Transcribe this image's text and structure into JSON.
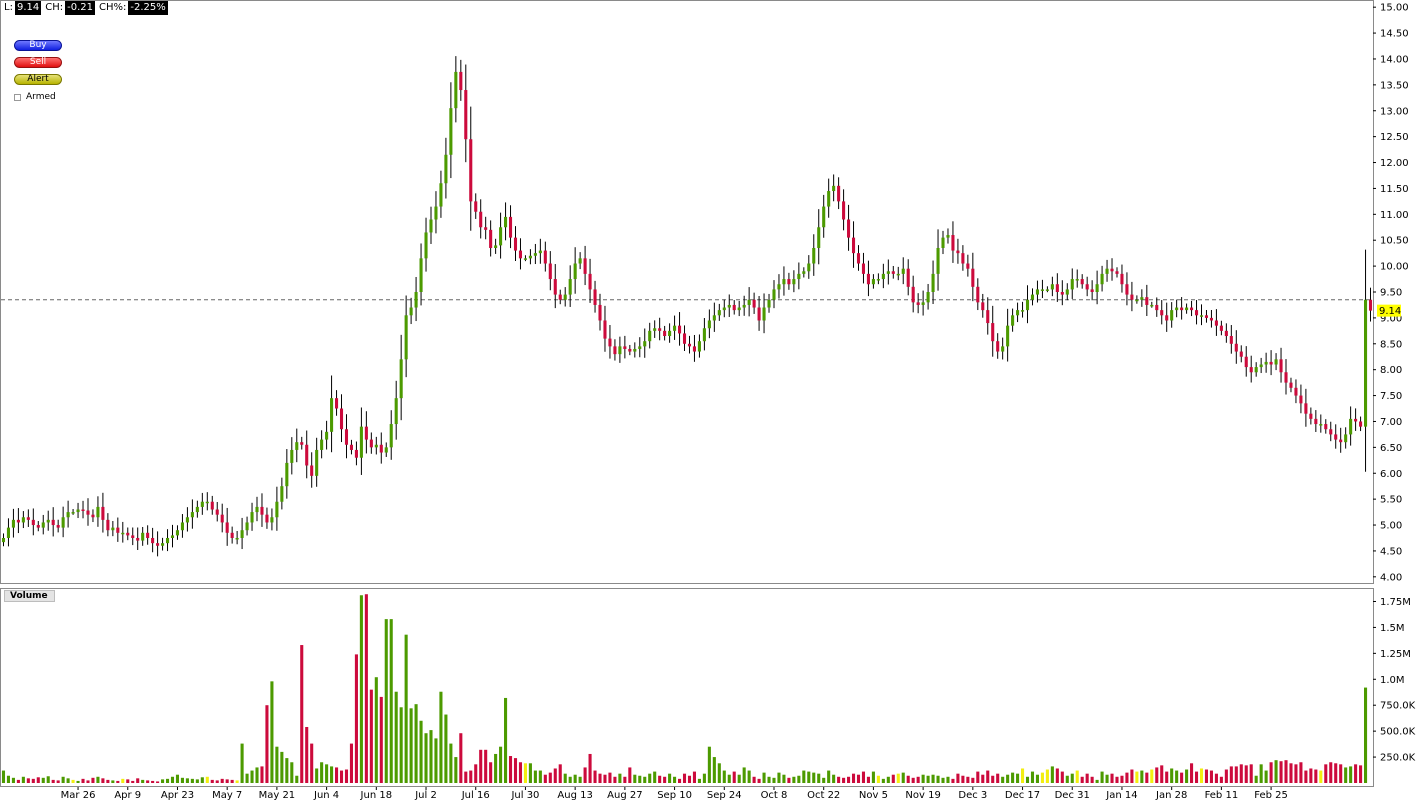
{
  "quote": {
    "last_label": "L:",
    "last_value": "9.14",
    "change_label": "CH:",
    "change_value": "-0.21",
    "change_pct_label": "CH%:",
    "change_pct_value": "-2.25%"
  },
  "controls": {
    "buy_label": "Buy",
    "sell_label": "Sell",
    "alert_label": "Alert",
    "armed_label": "Armed"
  },
  "volume_panel_label": "Volume",
  "price_marker_label": "9.14",
  "colors": {
    "up": "#4c9a00",
    "down": "#cc0a3c",
    "volume_neutral": "#f2ee10",
    "grid_dash": "#666666",
    "price_marker_bg": "#ffff00",
    "panel_border": "#8a8a8a"
  },
  "chart_data": [
    {
      "type": "candlestick",
      "title": "",
      "y_ticks": [
        "15.00",
        "14.50",
        "14.00",
        "13.50",
        "13.00",
        "12.50",
        "12.00",
        "11.50",
        "11.00",
        "10.50",
        "10.00",
        "9.50",
        "9.00",
        "8.50",
        "8.00",
        "7.50",
        "7.00",
        "6.50",
        "6.00",
        "5.50",
        "5.00",
        "4.50",
        "4.00"
      ],
      "ylim": [
        3.9,
        15.1
      ],
      "x_ticks": [
        "Mar 26",
        "Apr 9",
        "Apr 23",
        "May 7",
        "May 21",
        "Jun 4",
        "Jun 18",
        "Jul 2",
        "Jul 16",
        "Jul 30",
        "Aug 13",
        "Aug 27",
        "Sep 10",
        "Sep 24",
        "Oct 8",
        "Oct 22",
        "Nov 5",
        "Nov 19",
        "Dec 3",
        "Dec 17",
        "Dec 31",
        "Jan 14",
        "Jan 28",
        "Feb 11",
        "Feb 25"
      ],
      "x_tick_bar_index": [
        15,
        25,
        35,
        45,
        55,
        65,
        75,
        85,
        95,
        105,
        115,
        125,
        135,
        145,
        155,
        165,
        175,
        185,
        195,
        205,
        215,
        225,
        235,
        245,
        255
      ],
      "grid": false,
      "current_price_line": 9.35,
      "last_price": 9.14,
      "close": [
        4.75,
        4.95,
        5.1,
        5.05,
        5.15,
        5.1,
        5.0,
        4.95,
        5.05,
        5.1,
        5.0,
        4.95,
        5.15,
        5.25,
        5.25,
        5.3,
        5.28,
        5.2,
        5.15,
        5.35,
        5.1,
        4.9,
        4.95,
        4.85,
        4.85,
        4.8,
        4.75,
        4.7,
        4.85,
        4.75,
        4.65,
        4.6,
        4.65,
        4.75,
        4.8,
        4.9,
        5.05,
        5.15,
        5.25,
        5.35,
        5.45,
        5.45,
        5.3,
        5.2,
        5.05,
        4.85,
        4.75,
        4.75,
        4.9,
        5.05,
        5.25,
        5.35,
        5.2,
        5.05,
        5.15,
        5.45,
        5.75,
        6.2,
        6.45,
        6.6,
        6.55,
        6.15,
        5.95,
        6.45,
        6.65,
        6.8,
        7.45,
        7.25,
        6.85,
        6.55,
        6.45,
        6.3,
        6.9,
        6.65,
        6.5,
        6.55,
        6.4,
        6.5,
        6.95,
        7.45,
        8.2,
        9.05,
        9.2,
        9.5,
        10.15,
        10.65,
        10.9,
        11.15,
        11.6,
        12.15,
        13.05,
        13.75,
        13.4,
        12.45,
        11.25,
        11.05,
        10.75,
        10.7,
        10.35,
        10.4,
        10.75,
        10.95,
        10.55,
        10.3,
        10.15,
        10.15,
        10.2,
        10.25,
        10.3,
        10.05,
        9.75,
        9.45,
        9.35,
        9.45,
        9.75,
        10.05,
        10.15,
        9.85,
        9.55,
        9.25,
        8.95,
        8.6,
        8.45,
        8.3,
        8.45,
        8.4,
        8.35,
        8.4,
        8.45,
        8.55,
        8.75,
        8.8,
        8.75,
        8.65,
        8.75,
        8.85,
        8.7,
        8.5,
        8.45,
        8.35,
        8.55,
        8.8,
        8.95,
        9.05,
        9.15,
        9.2,
        9.25,
        9.15,
        9.2,
        9.25,
        9.35,
        9.2,
        8.95,
        9.2,
        9.35,
        9.55,
        9.65,
        9.75,
        9.65,
        9.75,
        9.85,
        9.9,
        10.05,
        10.35,
        10.75,
        11.15,
        11.45,
        11.55,
        11.25,
        10.9,
        10.55,
        10.25,
        10.05,
        9.85,
        9.65,
        9.75,
        9.75,
        9.85,
        9.9,
        9.85,
        9.85,
        9.95,
        9.6,
        9.3,
        9.25,
        9.3,
        9.5,
        9.85,
        10.35,
        10.55,
        10.6,
        10.3,
        10.25,
        10.05,
        9.95,
        9.6,
        9.3,
        9.15,
        8.9,
        8.55,
        8.35,
        8.45,
        8.85,
        9.05,
        9.15,
        9.15,
        9.35,
        9.45,
        9.55,
        9.55,
        9.55,
        9.65,
        9.5,
        9.45,
        9.55,
        9.75,
        9.75,
        9.65,
        9.55,
        9.5,
        9.65,
        9.85,
        9.95,
        9.9,
        9.85,
        9.65,
        9.45,
        9.35,
        9.35,
        9.4,
        9.25,
        9.25,
        9.15,
        9.05,
        8.95,
        9.15,
        9.2,
        9.15,
        9.2,
        9.15,
        9.05,
        9.05,
        9.0,
        8.95,
        8.85,
        8.75,
        8.65,
        8.5,
        8.35,
        8.25,
        8.05,
        7.95,
        8.05,
        8.1,
        8.15,
        8.1,
        8.2,
        7.95,
        7.75,
        7.65,
        7.5,
        7.35,
        7.15,
        7.05,
        6.95,
        6.95,
        6.85,
        6.75,
        6.65,
        6.6,
        6.75,
        7.05,
        7.0,
        6.9,
        9.35,
        9.14
      ]
    },
    {
      "type": "bar",
      "title": "Volume",
      "y_ticks": [
        "1.75M",
        "1.5M",
        "1.25M",
        "1.0M",
        "750.0K",
        "500.0K",
        "250.0K"
      ],
      "ylim": [
        0,
        1880000
      ],
      "grid": false,
      "volume_note": "one bar per candle; colour follows candle direction, yellow = unchanged",
      "values": [
        120000,
        70000,
        50000,
        30000,
        60000,
        45000,
        40000,
        55000,
        50000,
        65000,
        30000,
        25000,
        60000,
        45000,
        30000,
        20000,
        40000,
        25000,
        50000,
        60000,
        45000,
        30000,
        25000,
        20000,
        40000,
        35000,
        20000,
        45000,
        30000,
        25000,
        20000,
        15000,
        35000,
        40000,
        60000,
        80000,
        50000,
        45000,
        40000,
        35000,
        55000,
        60000,
        30000,
        25000,
        40000,
        35000,
        30000,
        25000,
        380000,
        90000,
        120000,
        150000,
        160000,
        750000,
        980000,
        350000,
        300000,
        240000,
        200000,
        70000,
        1330000,
        540000,
        380000,
        140000,
        200000,
        180000,
        160000,
        150000,
        120000,
        130000,
        380000,
        1240000,
        1810000,
        1820000,
        900000,
        1020000,
        830000,
        1580000,
        1580000,
        880000,
        730000,
        1430000,
        720000,
        760000,
        600000,
        480000,
        510000,
        430000,
        880000,
        660000,
        380000,
        250000,
        480000,
        110000,
        120000,
        180000,
        320000,
        320000,
        200000,
        280000,
        350000,
        820000,
        260000,
        240000,
        200000,
        190000,
        190000,
        120000,
        120000,
        80000,
        100000,
        140000,
        180000,
        90000,
        60000,
        80000,
        60000,
        150000,
        280000,
        120000,
        90000,
        80000,
        100000,
        60000,
        90000,
        60000,
        150000,
        80000,
        70000,
        60000,
        90000,
        110000,
        70000,
        60000,
        90000,
        60000,
        40000,
        90000,
        70000,
        110000,
        40000,
        90000,
        350000,
        250000,
        190000,
        120000,
        80000,
        110000,
        80000,
        150000,
        120000,
        60000,
        40000,
        100000,
        60000,
        50000,
        100000,
        80000,
        50000,
        60000,
        70000,
        120000,
        110000,
        100000,
        90000,
        50000,
        120000,
        80000,
        60000,
        50000,
        60000,
        90000,
        80000,
        110000,
        60000,
        110000,
        70000,
        40000,
        60000,
        80000,
        90000,
        100000,
        70000,
        50000,
        60000,
        80000,
        70000,
        80000,
        70000,
        50000,
        60000,
        40000,
        90000,
        70000,
        60000,
        50000,
        110000,
        80000,
        120000,
        70000,
        90000,
        60000,
        80000,
        100000,
        90000,
        140000,
        60000,
        110000,
        80000,
        100000,
        130000,
        160000,
        140000,
        110000,
        70000,
        90000,
        120000,
        60000,
        90000,
        60000,
        30000,
        110000,
        80000,
        90000,
        60000,
        70000,
        100000,
        130000,
        110000,
        120000,
        100000,
        130000,
        150000,
        170000,
        110000,
        140000,
        120000,
        100000,
        130000,
        190000,
        110000,
        140000,
        130000,
        120000,
        90000,
        60000,
        130000,
        160000,
        160000,
        180000,
        170000,
        180000,
        70000,
        180000,
        120000,
        200000,
        220000,
        210000,
        220000,
        190000,
        180000,
        200000,
        120000,
        140000,
        130000,
        120000,
        180000,
        200000,
        190000,
        180000,
        150000,
        160000,
        180000,
        170000,
        920000
      ]
    }
  ]
}
